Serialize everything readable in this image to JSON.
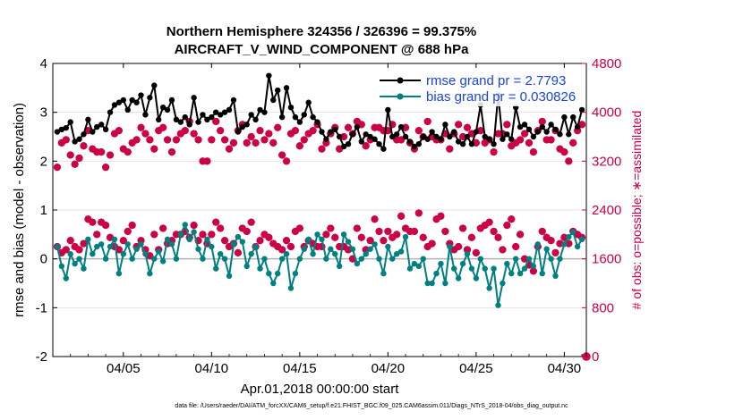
{
  "chart_data": {
    "type": "line",
    "title": "Northern Hemisphere 324356 / 326396 = 99.375%",
    "subtitle": "AIRCRAFT_V_WIND_COMPONENT @ 688 hPa",
    "xlabel": "Apr.01,2018 00:00:00 start",
    "ylabel": "rmse and bias (model - observation)",
    "y2label": "# of obs: o=possible; ∗=assimilated",
    "footer": "data file: /Users/raeder/DAI/ATM_forcXX/CAM6_setup/f.e21.FHIST_BGC.f09_025.CAM6assim.011/Diags_NTrS_2018-04/obs_diag_output.nc",
    "xlim": [
      1,
      31.25
    ],
    "ylim": [
      -2,
      4
    ],
    "y2lim": [
      0,
      4800
    ],
    "x_ticks": [
      5,
      10,
      15,
      20,
      25,
      30
    ],
    "x_tick_labels": [
      "04/05",
      "04/10",
      "04/15",
      "04/20",
      "04/25",
      "04/30"
    ],
    "y_ticks": [
      -2,
      -1,
      0,
      1,
      2,
      3,
      4
    ],
    "y_tick_labels": [
      "-2",
      "-1",
      "0",
      "1",
      "2",
      "3",
      "4"
    ],
    "y2_ticks": [
      0,
      800,
      1600,
      2400,
      3200,
      4000,
      4800
    ],
    "y2_tick_labels": [
      "0",
      "800",
      "1600",
      "2400",
      "3200",
      "4000",
      "4800"
    ],
    "x": [
      1.25,
      1.5,
      1.75,
      2.0,
      2.25,
      2.5,
      2.75,
      3.0,
      3.25,
      3.5,
      3.75,
      4.0,
      4.25,
      4.5,
      4.75,
      5.0,
      5.25,
      5.5,
      5.75,
      6.0,
      6.25,
      6.5,
      6.75,
      7.0,
      7.25,
      7.5,
      7.75,
      8.0,
      8.25,
      8.5,
      8.75,
      9.0,
      9.25,
      9.5,
      9.75,
      10.0,
      10.25,
      10.5,
      10.75,
      11.0,
      11.25,
      11.5,
      11.75,
      12.0,
      12.25,
      12.5,
      12.75,
      13.0,
      13.25,
      13.5,
      13.75,
      14.0,
      14.25,
      14.5,
      14.75,
      15.0,
      15.25,
      15.5,
      15.75,
      16.0,
      16.25,
      16.5,
      16.75,
      17.0,
      17.25,
      17.5,
      17.75,
      18.0,
      18.25,
      18.5,
      18.75,
      19.0,
      19.25,
      19.5,
      19.75,
      20.0,
      20.25,
      20.5,
      20.75,
      21.0,
      21.25,
      21.5,
      21.75,
      22.0,
      22.25,
      22.5,
      22.75,
      23.0,
      23.25,
      23.5,
      23.75,
      24.0,
      24.25,
      24.5,
      24.75,
      25.0,
      25.25,
      25.5,
      25.75,
      26.0,
      26.25,
      26.5,
      26.75,
      27.0,
      27.25,
      27.5,
      27.75,
      28.0,
      28.25,
      28.5,
      28.75,
      29.0,
      29.25,
      29.5,
      29.75,
      30.0,
      30.25,
      30.5,
      30.75,
      31.0
    ],
    "series": [
      {
        "name": "rmse grand pr = 2.7793",
        "axis": "left",
        "color": "#000000",
        "marker": "filled-circle",
        "values": [
          2.6,
          2.65,
          2.68,
          2.8,
          2.4,
          2.45,
          2.55,
          2.85,
          2.6,
          2.7,
          2.75,
          2.65,
          3.0,
          3.15,
          3.2,
          3.25,
          3.05,
          3.25,
          3.2,
          3.35,
          2.95,
          3.3,
          3.55,
          2.85,
          3.1,
          3.05,
          3.25,
          2.85,
          2.8,
          2.9,
          2.75,
          3.3,
          2.8,
          2.95,
          2.85,
          2.9,
          3.0,
          2.95,
          3.0,
          3.05,
          3.25,
          2.6,
          2.7,
          2.75,
          2.95,
          2.85,
          3.05,
          3.0,
          3.75,
          3.25,
          3.45,
          2.9,
          3.5,
          3.1,
          2.9,
          2.8,
          2.95,
          3.2,
          2.9,
          2.8,
          2.6,
          2.45,
          2.6,
          2.65,
          2.5,
          2.3,
          2.35,
          2.55,
          2.7,
          2.4,
          2.55,
          2.5,
          2.45,
          2.35,
          2.25,
          3.05,
          2.5,
          2.55,
          2.7,
          2.5,
          2.4,
          2.3,
          2.35,
          2.5,
          2.45,
          2.6,
          2.5,
          2.45,
          2.75,
          2.5,
          2.6,
          2.4,
          2.35,
          2.5,
          2.35,
          2.6,
          3.15,
          2.5,
          2.45,
          2.35,
          3.35,
          2.45,
          2.55,
          2.45,
          3.1,
          2.7,
          2.75,
          2.65,
          2.5,
          2.6,
          2.7,
          2.6,
          2.75,
          2.65,
          2.55,
          2.9,
          2.55,
          2.9,
          2.7,
          3.05
        ]
      },
      {
        "name": "bias grand pr = 0.030826",
        "axis": "left",
        "color": "#008080",
        "marker": "filled-circle",
        "values": [
          0.25,
          -0.15,
          -0.4,
          0.1,
          -0.1,
          0.0,
          -0.2,
          0.4,
          0.1,
          0.25,
          0.3,
          0.0,
          0.25,
          0.4,
          -0.3,
          0.1,
          0.3,
          0.0,
          0.2,
          0.3,
          0.1,
          -0.3,
          0.0,
          0.15,
          -0.05,
          0.4,
          0.3,
          0.0,
          0.5,
          0.7,
          0.4,
          0.55,
          0.2,
          0.0,
          0.4,
          0.25,
          -0.2,
          0.1,
          0.0,
          -0.35,
          0.3,
          0.45,
          0.35,
          -0.15,
          0.1,
          0.25,
          -0.2,
          0.0,
          -0.3,
          -0.5,
          -0.3,
          0.0,
          0.1,
          -0.6,
          -0.3,
          0.0,
          0.2,
          0.4,
          0.1,
          0.5,
          0.4,
          0.0,
          0.2,
          0.1,
          -0.15,
          0.5,
          0.35,
          0.2,
          -0.1,
          0.0,
          0.1,
          0.2,
          0.3,
          0.0,
          -0.3,
          0.25,
          0.0,
          0.1,
          0.15,
          0.45,
          -0.2,
          -0.1,
          -0.15,
          0.0,
          -0.5,
          -0.5,
          -0.3,
          -0.1,
          -0.5,
          0.25,
          -0.2,
          -0.4,
          -0.1,
          0.1,
          -0.2,
          -0.4,
          0.0,
          -0.2,
          -0.6,
          -0.2,
          -0.95,
          -0.5,
          -0.1,
          -0.3,
          0.0,
          -0.3,
          -0.2,
          0.0,
          -0.15,
          0.3,
          -0.3,
          0.2,
          0.0,
          -0.35,
          0.0,
          0.3,
          0.45,
          0.55,
          0.25,
          0.4
        ]
      }
    ],
    "obs_series": [
      {
        "name": "possible",
        "axis": "right",
        "marker": "o",
        "color": "#cc0044",
        "values": [
          3100,
          3500,
          3550,
          3300,
          3150,
          3250,
          3450,
          3700,
          3400,
          3350,
          3350,
          3100,
          3300,
          3650,
          3700,
          3400,
          3350,
          3500,
          3550,
          3750,
          3650,
          3550,
          3400,
          3700,
          3750,
          3550,
          3350,
          3550,
          3650,
          3700,
          3850,
          3650,
          3550,
          3200,
          3200,
          3550,
          3850,
          3700,
          3550,
          3400,
          3500,
          3700,
          3800,
          3500,
          3600,
          3500,
          3700,
          3550,
          3650,
          3500,
          3750,
          3300,
          3200,
          3650,
          3700,
          3450,
          3550,
          3650,
          3700,
          3800,
          3400,
          3500,
          3650,
          3750,
          3400,
          3600,
          3750,
          3650,
          3850,
          3800,
          3450,
          3550,
          3750,
          3750,
          3700,
          3700,
          3800,
          3550,
          3550,
          3750,
          3500,
          3400,
          3700,
          3600,
          3850,
          3600,
          3550,
          3550,
          3650,
          3400,
          3650,
          3800,
          3600,
          3750,
          3650,
          3500,
          3700,
          3500,
          3550,
          3350,
          3650,
          3650,
          3800,
          3450,
          3500,
          3550,
          3650,
          3500,
          3350,
          3700,
          3850,
          3550,
          3550,
          3700,
          3400,
          3350,
          3200,
          3500,
          3700,
          3800
        ]
      },
      {
        "name": "assimilated",
        "axis": "right",
        "marker": "*",
        "color": "#cc0044",
        "values": [
          3100,
          3500,
          3550,
          3300,
          3150,
          3250,
          3450,
          3700,
          3400,
          3350,
          3350,
          3100,
          3300,
          3650,
          3700,
          3400,
          3350,
          3500,
          3550,
          3750,
          3650,
          3550,
          3400,
          3700,
          3750,
          3550,
          3350,
          3550,
          3650,
          3700,
          3850,
          3650,
          3550,
          3200,
          3200,
          3550,
          3850,
          3700,
          3550,
          3400,
          3500,
          3700,
          3800,
          3500,
          3600,
          3500,
          3700,
          3550,
          3650,
          3500,
          3750,
          3300,
          3200,
          3650,
          3700,
          3450,
          3550,
          3650,
          3700,
          3800,
          3400,
          3500,
          3650,
          3750,
          3400,
          3600,
          3750,
          3650,
          3850,
          3800,
          3450,
          3550,
          3750,
          3750,
          3700,
          3700,
          3800,
          3550,
          3550,
          3750,
          3500,
          3400,
          3700,
          3600,
          3850,
          3600,
          3550,
          3550,
          3650,
          3400,
          3650,
          3800,
          3600,
          3750,
          3650,
          3500,
          3700,
          3500,
          3550,
          3350,
          3650,
          3650,
          3800,
          3450,
          3500,
          3550,
          3650,
          3500,
          3350,
          3700,
          3850,
          3550,
          3550,
          3700,
          3400,
          3350,
          3200,
          3500,
          3700,
          3800
        ]
      }
    ],
    "obs_lower": [
      1800,
      1700,
      1750,
      1900,
      1800,
      1750,
      1850,
      2250,
      2200,
      2000,
      2200,
      2150,
      1950,
      1800,
      1750,
      1900,
      2050,
      2150,
      1800,
      1900,
      1750,
      1650,
      2000,
      1750,
      2100,
      1850,
      1900,
      2000,
      2000,
      2050,
      1950,
      2150,
      1900,
      2000,
      1850,
      2000,
      2200,
      2100,
      1900,
      1800,
      1850,
      1700,
      2100,
      2050,
      2200,
      1800,
      1900,
      2000,
      1950,
      1850,
      1800,
      1750,
      1900,
      1800,
      2050,
      2100,
      1800,
      1900,
      1850,
      1800,
      1800,
      2000,
      2100,
      1950,
      1800,
      1800,
      1750,
      1600,
      2100,
      1950,
      1750,
      1900,
      2250,
      2050,
      1900,
      2050,
      1950,
      2000,
      2300,
      2100,
      2050,
      2050,
      2350,
      1950,
      1800,
      1850,
      2250,
      2300,
      2050,
      1850,
      1750,
      1800,
      2100,
      1750,
      1950,
      1700,
      2100,
      2150,
      2200,
      2050,
      1950,
      1750,
      2150,
      2250,
      1800,
      2000,
      1600,
      1500,
      1400,
      1800,
      2050,
      1950,
      1900,
      1700,
      1850,
      1950,
      1850,
      2050,
      2000,
      1950
    ]
  }
}
